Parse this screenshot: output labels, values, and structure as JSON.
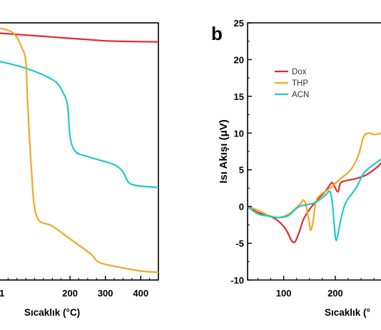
{
  "chart_data": [
    {
      "type": "line",
      "panel_label": "",
      "xlabel_prefix": "Sıcaklık (",
      "xlabel_unit": "°C",
      "xlabel_suffix": ")",
      "xlim": [
        0,
        450
      ],
      "x_ticks": [
        200,
        300,
        400
      ],
      "x_tick_labels": [
        "200",
        "300",
        "400"
      ],
      "partial_tick_label": "1",
      "ylim": [
        0,
        100
      ],
      "ylabel": "",
      "series": [
        {
          "color": "#e02b2b",
          "x": [
            0,
            50,
            100,
            150,
            200,
            250,
            300,
            350,
            400,
            450
          ],
          "y": [
            96,
            95.5,
            95,
            94.5,
            94,
            93.5,
            93,
            92.8,
            92.7,
            92.6
          ]
        },
        {
          "color": "#1fc9c9",
          "x": [
            0,
            60,
            120,
            160,
            180,
            193,
            200,
            215,
            250,
            300,
            330,
            350,
            365,
            380,
            400,
            450
          ],
          "y": [
            85,
            83,
            80,
            77,
            73,
            68,
            56,
            50,
            48,
            46,
            44.5,
            42,
            38,
            37,
            36.5,
            36
          ]
        },
        {
          "color": "#f5a623",
          "x": [
            0,
            40,
            65,
            75,
            80,
            90,
            105,
            150,
            200,
            230,
            260,
            280,
            320,
            400,
            450
          ],
          "y": [
            98,
            96,
            90,
            85,
            70,
            45,
            25,
            21,
            16,
            13,
            10,
            7,
            5.5,
            3.5,
            3
          ]
        }
      ]
    },
    {
      "type": "line",
      "panel_label": "b",
      "ylabel": "Isı Akışı (μV)",
      "xlabel_prefix": "Sıcaklık (",
      "xlabel_unit": "°",
      "xlabel_suffix": "",
      "xlim": [
        30,
        290
      ],
      "ylim": [
        -10,
        25
      ],
      "x_ticks": [
        100,
        200
      ],
      "x_tick_labels": [
        "100",
        "200"
      ],
      "partial_tick_label": "2",
      "y_ticks": [
        -10,
        -5,
        0,
        5,
        10,
        15,
        20,
        25
      ],
      "y_tick_labels": [
        "-10",
        "-5",
        "0",
        "5",
        "10",
        "15",
        "20",
        "25"
      ],
      "legend": {
        "position": "upper-left"
      },
      "series": [
        {
          "name": "Dox",
          "color": "#e02b2b",
          "x": [
            30,
            50,
            70,
            90,
            105,
            115,
            122,
            130,
            140,
            160,
            180,
            190,
            195,
            205,
            210,
            220,
            240,
            260,
            280,
            290
          ],
          "y": [
            0,
            -0.8,
            -1.2,
            -2,
            -3.2,
            -4.6,
            -4.8,
            -3.5,
            -1.5,
            0.5,
            2,
            3,
            3.2,
            2,
            3.2,
            3.5,
            3.8,
            4.3,
            5.3,
            6
          ]
        },
        {
          "name": "THP",
          "color": "#f5a623",
          "x": [
            30,
            50,
            70,
            90,
            110,
            130,
            140,
            148,
            152,
            157,
            162,
            170,
            190,
            210,
            230,
            245,
            255,
            265,
            275,
            290
          ],
          "y": [
            0,
            -0.5,
            -1.2,
            -1.5,
            -1,
            0.2,
            0.8,
            -1.5,
            -3.2,
            -2,
            0.5,
            1.5,
            2.5,
            3.8,
            5,
            7,
            9.5,
            10,
            9.8,
            10
          ]
        },
        {
          "name": "ACN",
          "color": "#1fc9c9",
          "x": [
            30,
            50,
            70,
            90,
            110,
            130,
            160,
            180,
            190,
            195,
            198,
            202,
            210,
            220,
            240,
            255,
            270,
            280,
            290
          ],
          "y": [
            0,
            -1,
            -1.3,
            -1.5,
            -1.2,
            0,
            0.5,
            1.5,
            2,
            0,
            -2.5,
            -4.6,
            -2,
            0.5,
            2.5,
            4.5,
            5.5,
            6,
            6.5
          ]
        }
      ]
    }
  ]
}
